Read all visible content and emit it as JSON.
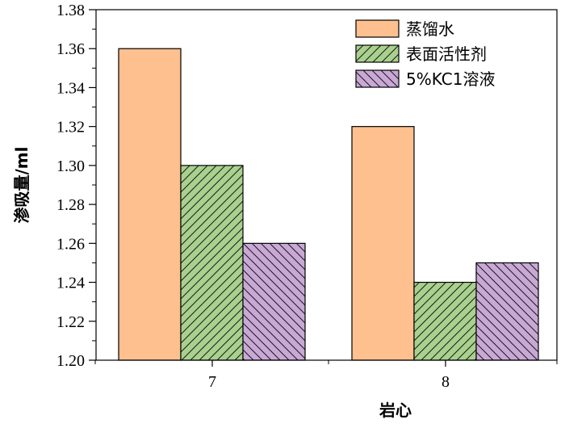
{
  "chart_data": {
    "type": "bar",
    "categories": [
      "7",
      "8"
    ],
    "series": [
      {
        "name": "蒸馏水",
        "values": [
          1.36,
          1.32
        ],
        "color": "#FDC08E",
        "pattern": "solid"
      },
      {
        "name": "表面活性剂",
        "values": [
          1.3,
          1.24
        ],
        "color": "#A9D18E",
        "pattern": "hatch"
      },
      {
        "name": "5%KC1溶液",
        "values": [
          1.26,
          1.25
        ],
        "color": "#C9A8D6",
        "pattern": "hatch"
      }
    ],
    "ylim": [
      1.2,
      1.38
    ],
    "yticks": [
      "1.20",
      "1.22",
      "1.24",
      "1.26",
      "1.28",
      "1.30",
      "1.32",
      "1.34",
      "1.36",
      "1.38"
    ],
    "xlabel": "岩心",
    "ylabel": "渗吸量/ml",
    "legend_position": "top-right",
    "grid": false
  }
}
